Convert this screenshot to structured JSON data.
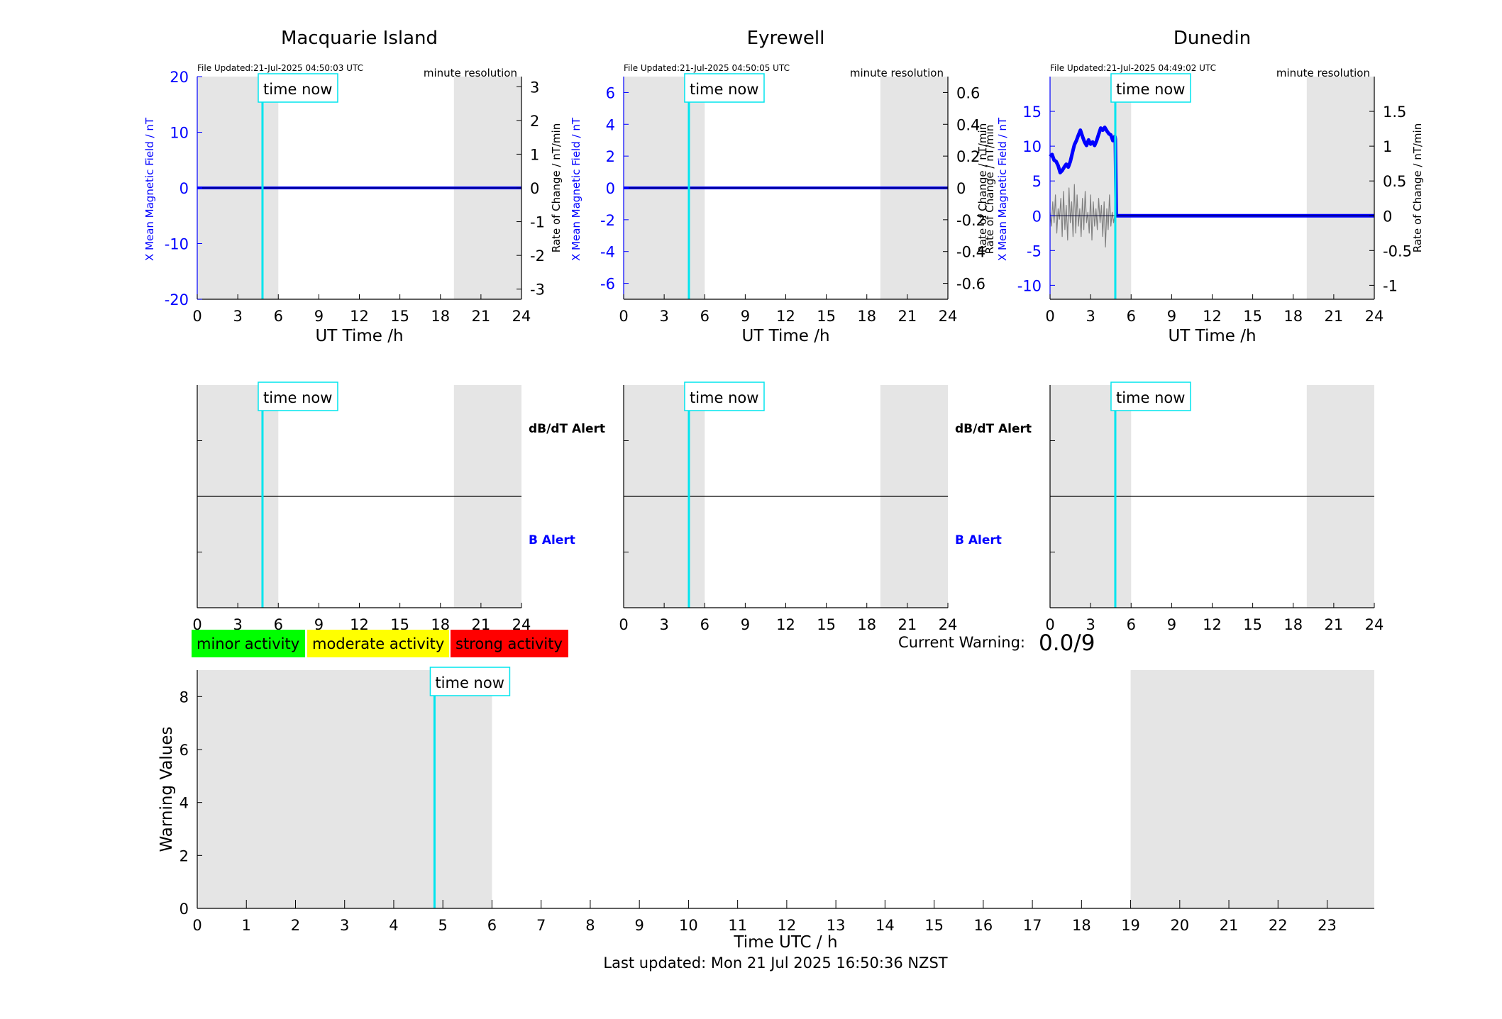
{
  "colors": {
    "field": "#0000ff",
    "rate": "#808080",
    "time_now": "#00e5ee",
    "shade": "#e5e5e5",
    "minor": "#00ff00",
    "moderate": "#ffff00",
    "strong": "#ff0000"
  },
  "stations": [
    {
      "name": "Macquarie Island",
      "file_updated": "File Updated:21-Jul-2025 04:50:03 UTC",
      "resolution": "minute resolution",
      "xlabel": "UT Time /h",
      "ylabel_left": "X Mean Magnetic Field / nT",
      "ylabel_right": "Rate of Change / nT/min",
      "yticks_left": [
        "20",
        "10",
        "0",
        "-10",
        "-20"
      ],
      "yticks_right": [
        "3",
        "2",
        "1",
        "0",
        "-1",
        "-2",
        "-3"
      ]
    },
    {
      "name": "Eyrewell",
      "file_updated": "File Updated:21-Jul-2025 04:50:05 UTC",
      "resolution": "minute resolution",
      "xlabel": "UT Time /h",
      "ylabel_left": "X Mean Magnetic Field / nT",
      "ylabel_right": "Rate of Change / nT/min",
      "yticks_left": [
        "6",
        "4",
        "2",
        "0",
        "-2",
        "-4",
        "-6"
      ],
      "yticks_right": [
        "0.6",
        "0.4",
        "0.2",
        "0",
        "-0.2",
        "-0.4",
        "-0.6"
      ]
    },
    {
      "name": "Dunedin",
      "file_updated": "File Updated:21-Jul-2025 04:49:02 UTC",
      "resolution": "minute resolution",
      "xlabel": "UT Time /h",
      "ylabel_left": "X Mean Magnetic Field / nT",
      "ylabel_left2": "Rate of Change / nT/min",
      "ylabel_right": "Rate of Change / nT/min",
      "yticks_left": [
        "15",
        "10",
        "5",
        "0",
        "-5",
        "-10"
      ],
      "yticks_right": [
        "1.5",
        "1",
        "0.5",
        "0",
        "-0.5",
        "-1"
      ]
    }
  ],
  "time_now_label": "time now",
  "alert_labels": {
    "dbdt": "dB/dT Alert",
    "b": "B Alert"
  },
  "hour_ticks": [
    "0",
    "3",
    "6",
    "9",
    "12",
    "15",
    "18",
    "21",
    "24"
  ],
  "legend": {
    "minor": "minor activity",
    "moderate": "moderate activity",
    "strong": "strong activity"
  },
  "current_warning": {
    "label": "Current Warning:",
    "value": "0.0/9"
  },
  "footer": "Last updated: Mon 21 Jul 2025 16:50:36 NZST",
  "chart_data": [
    {
      "type": "line",
      "title": "Macquarie Island",
      "xlabel": "UT Time /h",
      "ylabel": "X Mean Magnetic Field / nT",
      "y2label": "Rate of Change / nT/min",
      "xlim": [
        0,
        24
      ],
      "ylim": [
        -20,
        20
      ],
      "y2lim": [
        -3.3,
        3.3
      ],
      "time_now": 4.83,
      "night_shading": [
        [
          0,
          6
        ],
        [
          19,
          24
        ]
      ],
      "series": [
        {
          "name": "X Mean Magnetic Field",
          "x": [
            0,
            24
          ],
          "values": [
            0,
            0
          ]
        }
      ]
    },
    {
      "type": "line",
      "title": "Eyrewell",
      "xlabel": "UT Time /h",
      "ylabel": "X Mean Magnetic Field / nT",
      "y2label": "Rate of Change / nT/min",
      "xlim": [
        0,
        24
      ],
      "ylim": [
        -7,
        7
      ],
      "y2lim": [
        -0.7,
        0.7
      ],
      "time_now": 4.83,
      "night_shading": [
        [
          0,
          6
        ],
        [
          19,
          24
        ]
      ],
      "series": [
        {
          "name": "X Mean Magnetic Field",
          "x": [
            0,
            24
          ],
          "values": [
            0,
            0
          ]
        }
      ]
    },
    {
      "type": "line",
      "title": "Dunedin",
      "xlabel": "UT Time /h",
      "ylabel": "X Mean Magnetic Field / nT",
      "y2label": "Rate of Change / nT/min",
      "xlim": [
        0,
        24
      ],
      "ylim": [
        -12,
        20
      ],
      "y2lim": [
        -1.2,
        2.0
      ],
      "time_now": 4.83,
      "night_shading": [
        [
          0,
          6
        ],
        [
          19,
          24
        ]
      ],
      "series": [
        {
          "name": "X Mean Magnetic Field",
          "x": [
            0,
            0.15,
            0.3,
            0.45,
            0.6,
            0.75,
            0.9,
            1.05,
            1.2,
            1.35,
            1.5,
            1.65,
            1.8,
            1.95,
            2.1,
            2.25,
            2.4,
            2.55,
            2.7,
            2.85,
            3.0,
            3.15,
            3.3,
            3.45,
            3.6,
            3.75,
            3.9,
            4.05,
            4.2,
            4.35,
            4.5,
            4.65,
            4.8,
            4.83,
            4.9,
            24
          ],
          "values": [
            8.5,
            8.8,
            8.0,
            7.8,
            7.2,
            6.2,
            6.5,
            7.0,
            7.4,
            7.0,
            7.8,
            9.0,
            10.2,
            10.8,
            11.6,
            12.3,
            11.4,
            10.6,
            10.1,
            10.9,
            10.3,
            10.6,
            10.1,
            10.8,
            11.7,
            12.6,
            12.3,
            12.7,
            12.2,
            11.8,
            11.6,
            10.8,
            11.4,
            11.0,
            0,
            0
          ]
        },
        {
          "name": "Rate of Change",
          "x": [
            0,
            0.1,
            0.2,
            0.3,
            0.4,
            0.5,
            0.6,
            0.7,
            0.8,
            0.9,
            1.0,
            1.1,
            1.2,
            1.3,
            1.4,
            1.5,
            1.6,
            1.7,
            1.8,
            1.9,
            2.0,
            2.1,
            2.2,
            2.3,
            2.4,
            2.5,
            2.6,
            2.7,
            2.8,
            2.9,
            3.0,
            3.1,
            3.2,
            3.3,
            3.4,
            3.5,
            3.6,
            3.7,
            3.8,
            3.9,
            4.0,
            4.1,
            4.2,
            4.3,
            4.4,
            4.5,
            4.6,
            4.7,
            4.8
          ],
          "values": [
            0.05,
            -0.15,
            0.2,
            -0.1,
            0.3,
            -0.25,
            0.1,
            -0.05,
            0.25,
            -0.3,
            0.35,
            -0.2,
            0.15,
            -0.35,
            0.4,
            -0.1,
            0.2,
            -0.3,
            0.45,
            -0.25,
            0.3,
            -0.15,
            0.1,
            -0.3,
            0.25,
            -0.2,
            0.35,
            -0.1,
            0.05,
            -0.25,
            0.3,
            -0.35,
            0.2,
            -0.15,
            0.1,
            -0.2,
            0.25,
            -0.1,
            0.15,
            -0.3,
            0.2,
            -0.45,
            0.1,
            -0.2,
            0.3,
            -0.15,
            0.05,
            -0.1,
            0.02
          ]
        }
      ]
    },
    {
      "type": "line",
      "title": "",
      "xlabel": "",
      "ylabel": "",
      "xlim": [
        0,
        24
      ],
      "time_now": 4.83,
      "night_shading": [
        [
          0,
          6
        ],
        [
          19,
          24
        ]
      ],
      "series": [
        {
          "x": [
            0,
            24
          ],
          "values": [
            0,
            0
          ]
        }
      ]
    },
    {
      "type": "line",
      "title": "",
      "xlabel": "",
      "ylabel": "",
      "xlim": [
        0,
        24
      ],
      "time_now": 4.83,
      "night_shading": [
        [
          0,
          6
        ],
        [
          19,
          24
        ]
      ],
      "series": [
        {
          "x": [
            0,
            24
          ],
          "values": [
            0,
            0
          ]
        }
      ]
    },
    {
      "type": "line",
      "title": "",
      "xlabel": "",
      "ylabel": "",
      "xlim": [
        0,
        24
      ],
      "time_now": 4.83,
      "night_shading": [
        [
          0,
          6
        ],
        [
          19,
          24
        ]
      ],
      "series": [
        {
          "x": [
            0,
            24
          ],
          "values": [
            0,
            0
          ]
        }
      ]
    },
    {
      "type": "bar",
      "title": "",
      "xlabel": "Time UTC / h",
      "ylabel": "Warning Values",
      "xlim": [
        0,
        24
      ],
      "ylim": [
        0,
        9
      ],
      "xticks": [
        "0",
        "1",
        "2",
        "3",
        "4",
        "5",
        "6",
        "7",
        "8",
        "9",
        "10",
        "11",
        "12",
        "13",
        "14",
        "15",
        "16",
        "17",
        "18",
        "19",
        "20",
        "21",
        "22",
        "23"
      ],
      "yticks": [
        "0",
        "2",
        "4",
        "6",
        "8"
      ],
      "time_now": 4.83,
      "night_shading": [
        [
          0,
          6
        ],
        [
          19,
          24
        ]
      ],
      "categories": [
        "0",
        "1",
        "2",
        "3",
        "4",
        "5",
        "6",
        "7",
        "8",
        "9",
        "10",
        "11",
        "12",
        "13",
        "14",
        "15",
        "16",
        "17",
        "18",
        "19",
        "20",
        "21",
        "22",
        "23"
      ],
      "values": [
        0,
        0,
        0,
        0,
        0,
        0,
        0,
        0,
        0,
        0,
        0,
        0,
        0,
        0,
        0,
        0,
        0,
        0,
        0,
        0,
        0,
        0,
        0,
        0
      ]
    }
  ]
}
